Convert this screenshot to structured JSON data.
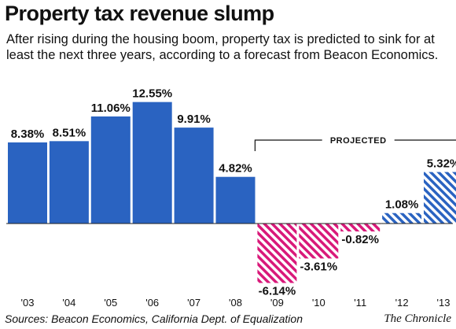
{
  "title": "Property tax revenue slump",
  "subtitle": "After rising during the housing boom, property tax is predicted to sink for at least the next three years, according to a forecast from Beacon Economics.",
  "source": "Sources: Beacon Economics, California Dept. of Equalization",
  "credit": "The Chronicle",
  "colors": {
    "positive": "#2a63c1",
    "negative": "#d9197a",
    "bracket": "#111111"
  },
  "chart_data": {
    "type": "bar",
    "categories": [
      "'03",
      "'04",
      "'05",
      "'06",
      "'07",
      "'08",
      "'09",
      "'10",
      "'11",
      "'12",
      "'13"
    ],
    "values": [
      8.38,
      8.51,
      11.06,
      12.55,
      9.91,
      4.82,
      -6.14,
      -3.61,
      -0.82,
      1.08,
      5.32
    ],
    "value_labels": [
      "8.38%",
      "8.51%",
      "11.06%",
      "12.55%",
      "9.91%",
      "4.82%",
      "-6.14%",
      "-3.61%",
      "-0.82%",
      "1.08%",
      "5.32%"
    ],
    "projected": [
      false,
      false,
      false,
      false,
      false,
      false,
      true,
      true,
      true,
      true,
      true
    ],
    "projected_label": "PROJECTED",
    "unit": "%",
    "ylim": [
      -7,
      14
    ],
    "grid": false,
    "legend": "none"
  }
}
